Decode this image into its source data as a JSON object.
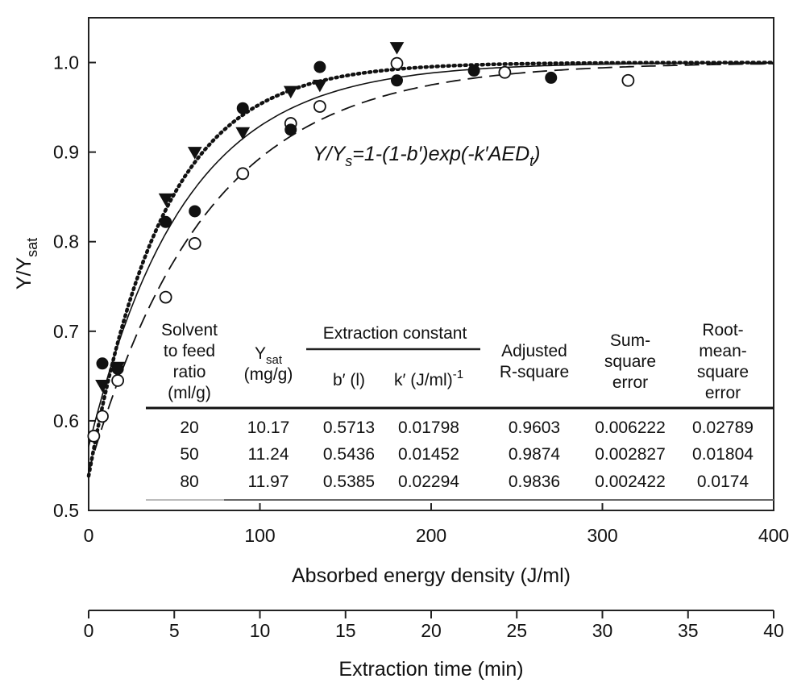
{
  "chart_data": {
    "type": "scatter",
    "y_axis": {
      "label": "Y/Y",
      "label_sub": "sat",
      "ylim": [
        0.5,
        1.05
      ],
      "ticks": [
        0.5,
        0.6,
        0.7,
        0.8,
        0.9,
        1.0
      ],
      "tick_labels": [
        "0.5",
        "0.6",
        "0.7",
        "0.8",
        "0.9",
        "1.0"
      ]
    },
    "x_axis": {
      "label": "Absorbed energy density (J/ml)",
      "xlim": [
        0,
        400
      ],
      "ticks": [
        0,
        100,
        200,
        300,
        400
      ],
      "tick_labels": [
        "0",
        "100",
        "200",
        "300",
        "400"
      ]
    },
    "x2_axis": {
      "label": "Extraction time (min)",
      "ticks": [
        0,
        5,
        10,
        15,
        20,
        25,
        30,
        35,
        40
      ],
      "tick_labels": [
        "0",
        "5",
        "10",
        "15",
        "20",
        "25",
        "30",
        "35",
        "40"
      ],
      "min_per_aed_unit": 0.1
    },
    "grid": false,
    "equation": {
      "p1": "Y/Y",
      "p1_sub": "s",
      "p2": "=1-(1-b′)exp(-k′AED",
      "p2_sub": "t",
      "p3": ")"
    },
    "series": [
      {
        "marker": "circle-open",
        "line": "solid",
        "b": 0.5713,
        "k": 0.01798,
        "points": [
          [
            3,
            0.583
          ],
          [
            8,
            0.605
          ],
          [
            17,
            0.645
          ],
          [
            45,
            0.738
          ],
          [
            62,
            0.798
          ],
          [
            90,
            0.876
          ],
          [
            118,
            0.932
          ],
          [
            135,
            0.951
          ],
          [
            180,
            0.999
          ],
          [
            243,
            0.989
          ],
          [
            315,
            0.98
          ]
        ]
      },
      {
        "marker": "triangle-down-filled",
        "line": "dash",
        "b": 0.5436,
        "k": 0.01452,
        "points": [
          [
            8,
            0.64
          ],
          [
            17,
            0.66
          ],
          [
            45,
            0.848
          ],
          [
            62,
            0.9
          ],
          [
            90,
            0.922
          ],
          [
            118,
            0.968
          ],
          [
            135,
            0.975
          ],
          [
            180,
            1.017
          ]
        ]
      },
      {
        "marker": "circle-filled",
        "line": "dot",
        "b": 0.5385,
        "k": 0.02294,
        "points": [
          [
            8,
            0.664
          ],
          [
            17,
            0.658
          ],
          [
            45,
            0.822
          ],
          [
            62,
            0.834
          ],
          [
            90,
            0.949
          ],
          [
            118,
            0.925
          ],
          [
            135,
            0.995
          ],
          [
            180,
            0.98
          ],
          [
            225,
            0.991
          ],
          [
            270,
            0.983
          ]
        ]
      }
    ],
    "table": {
      "headers": {
        "solvent": [
          "Solvent",
          "to feed",
          "ratio",
          "(ml/g)"
        ],
        "ysat_main": "Y",
        "ysat_sub": "sat",
        "ysat_unit": "(mg/g)",
        "group": "Extraction constant",
        "b": "b′ (l)",
        "k_main": "k′ (J/ml)",
        "k_sup": "-1",
        "adjr2": [
          "Adjusted",
          "R-square"
        ],
        "sse": [
          "Sum-",
          "square",
          "error"
        ],
        "rmse": [
          "Root-",
          "mean-",
          "square",
          "error"
        ]
      },
      "rows": [
        [
          "20",
          "10.17",
          "0.5713",
          "0.01798",
          "0.9603",
          "0.006222",
          "0.02789"
        ],
        [
          "50",
          "11.24",
          "0.5436",
          "0.01452",
          "0.9874",
          "0.002827",
          "0.01804"
        ],
        [
          "80",
          "11.97",
          "0.5385",
          "0.02294",
          "0.9836",
          "0.002422",
          "0.0174"
        ]
      ]
    }
  }
}
